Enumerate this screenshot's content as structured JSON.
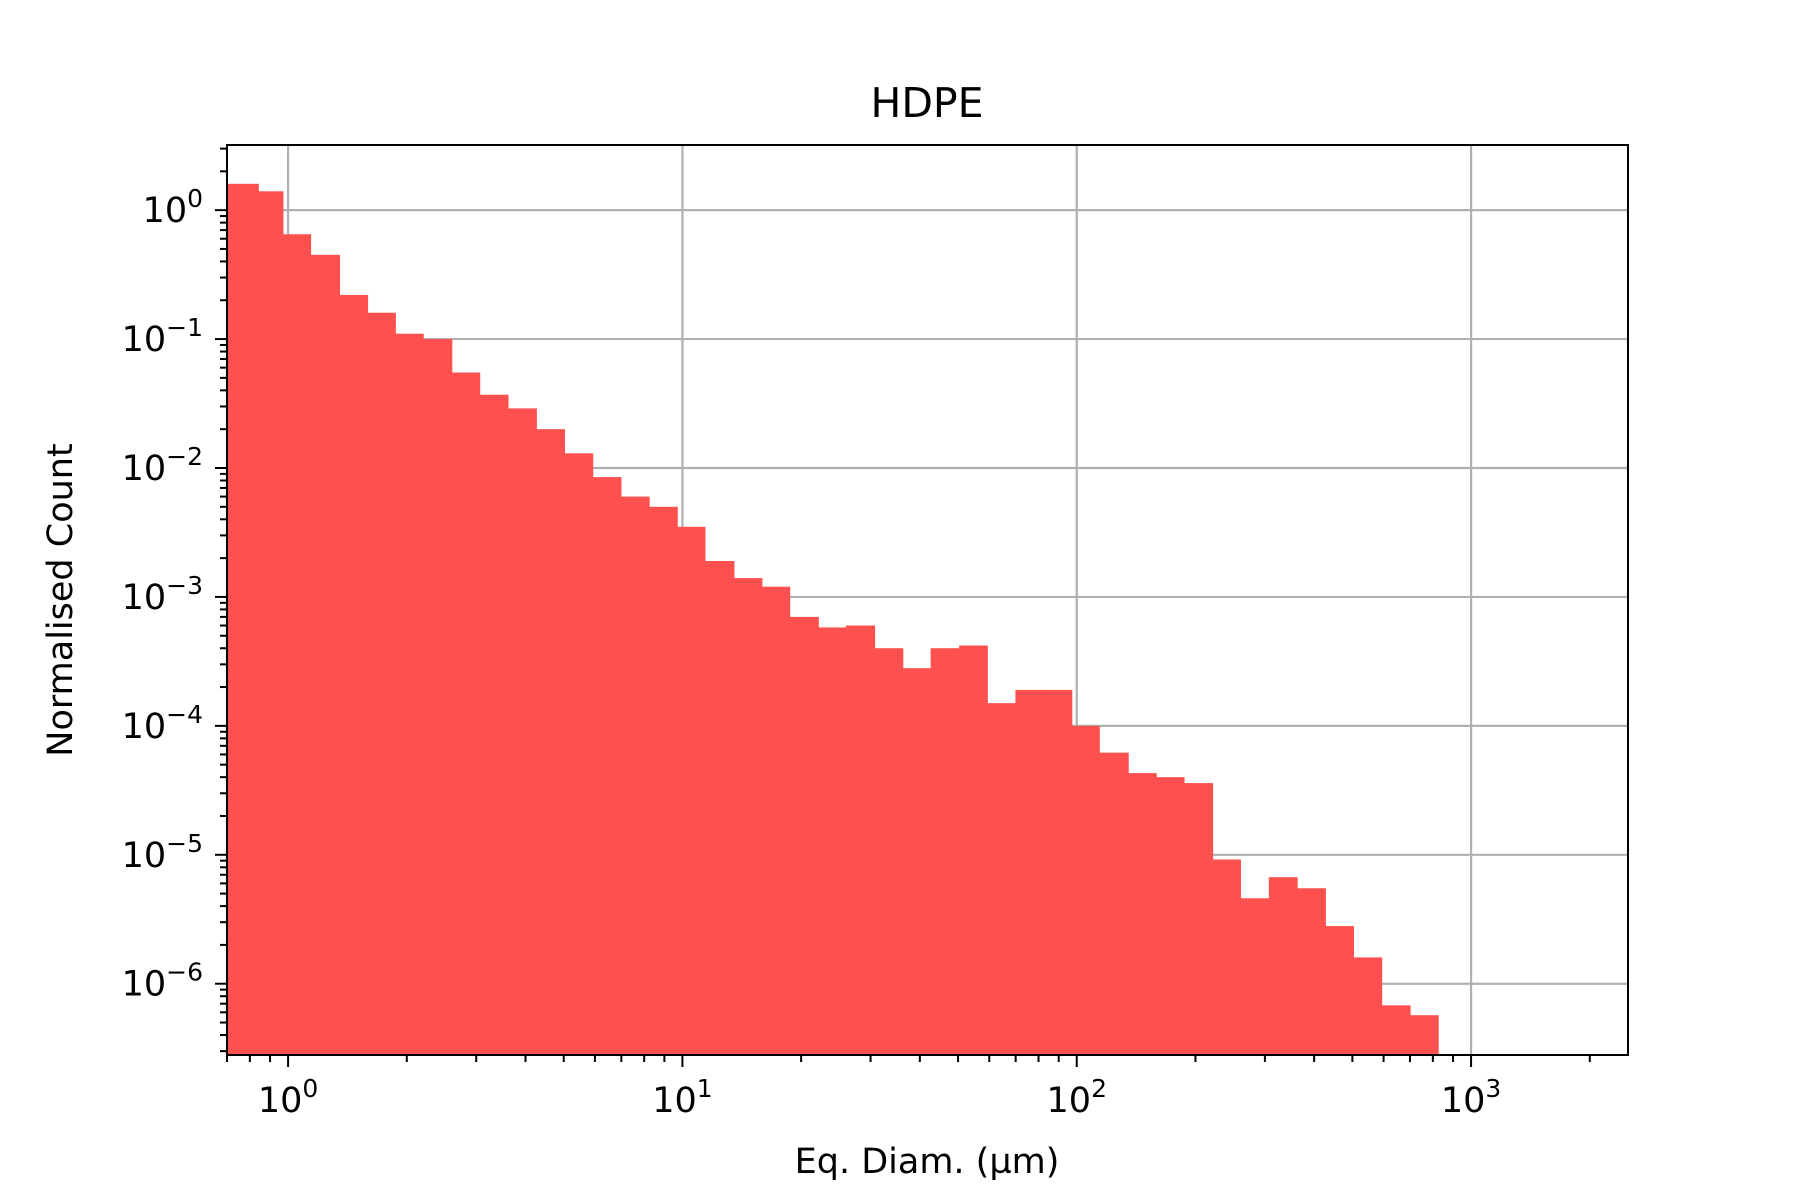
{
  "chart_data": {
    "type": "bar",
    "title": "HDPE",
    "xlabel": "Eq. Diam. (µm)",
    "ylabel": "Normalised Count",
    "x_scale": "log",
    "y_scale": "log",
    "xlim": [
      0.7,
      2500
    ],
    "ylim": [
      2.8e-07,
      3.2
    ],
    "grid": true,
    "bar_color": "#ff5050",
    "x_ticks": [
      {
        "value": 1,
        "base": "10",
        "exp": "0"
      },
      {
        "value": 10,
        "base": "10",
        "exp": "1"
      },
      {
        "value": 100,
        "base": "10",
        "exp": "2"
      },
      {
        "value": 1000,
        "base": "10",
        "exp": "3"
      }
    ],
    "y_ticks": [
      {
        "value": 1,
        "base": "10",
        "exp": "0"
      },
      {
        "value": 0.1,
        "base": "10",
        "exp": "−1"
      },
      {
        "value": 0.01,
        "base": "10",
        "exp": "−2"
      },
      {
        "value": 0.001,
        "base": "10",
        "exp": "−3"
      },
      {
        "value": 0.0001,
        "base": "10",
        "exp": "−4"
      },
      {
        "value": 1e-05,
        "base": "10",
        "exp": "−5"
      },
      {
        "value": 1e-06,
        "base": "10",
        "exp": "−6"
      }
    ],
    "bin_edges": [
      0.7,
      0.84,
      0.97,
      1.14,
      1.35,
      1.59,
      1.87,
      2.2,
      2.6,
      3.06,
      3.61,
      4.26,
      5.02,
      5.92,
      6.98,
      8.23,
      9.7,
      11.4,
      13.5,
      15.9,
      18.7,
      22.1,
      26.0,
      30.7,
      36.2,
      42.6,
      50.3,
      59.3,
      69.9,
      82.4,
      97.1,
      114,
      135,
      159,
      187,
      221,
      260,
      307,
      362,
      427,
      503,
      593,
      700,
      825
    ],
    "values": [
      1.6,
      1.4,
      0.65,
      0.45,
      0.22,
      0.16,
      0.11,
      0.1,
      0.055,
      0.037,
      0.029,
      0.02,
      0.013,
      0.0085,
      0.006,
      0.005,
      0.0035,
      0.0019,
      0.0014,
      0.0012,
      0.0007,
      0.00058,
      0.0006,
      0.0004,
      0.00028,
      0.0004,
      0.00042,
      0.00015,
      0.00019,
      0.00019,
      0.0001,
      6.2e-05,
      4.3e-05,
      4e-05,
      3.6e-05,
      9.2e-06,
      4.6e-06,
      6.7e-06,
      5.5e-06,
      2.8e-06,
      1.6e-06,
      6.8e-07,
      5.7e-07
    ]
  }
}
